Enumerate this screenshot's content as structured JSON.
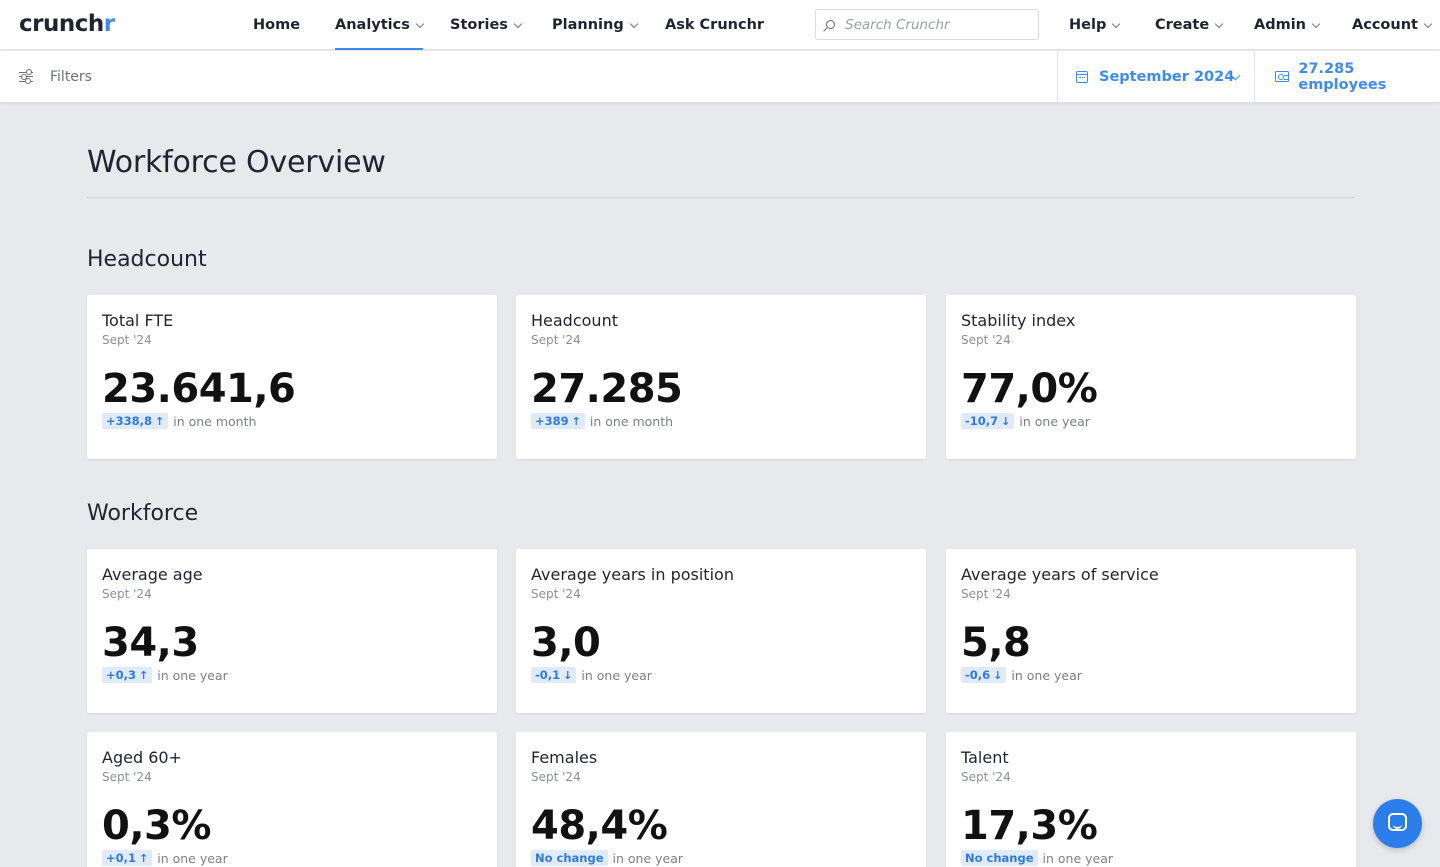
{
  "logo": {
    "prefix": "c",
    "main": "runch",
    "accent": "r"
  },
  "nav": {
    "items": [
      {
        "label": "Home",
        "dropdown": false,
        "active": false
      },
      {
        "label": "Analytics",
        "dropdown": true,
        "active": true
      },
      {
        "label": "Stories",
        "dropdown": true,
        "active": false
      },
      {
        "label": "Planning",
        "dropdown": true,
        "active": false
      },
      {
        "label": "Ask Crunchr",
        "dropdown": false,
        "active": false
      }
    ],
    "search_placeholder": "Search Crunchr",
    "right_items": [
      {
        "label": "Help"
      },
      {
        "label": "Create"
      },
      {
        "label": "Admin"
      },
      {
        "label": "Account"
      }
    ]
  },
  "filterbar": {
    "filters_label": "Filters",
    "date_label": "September 2024",
    "employees_label": "27.285 employees"
  },
  "page": {
    "title": "Workforce Overview",
    "sections": [
      {
        "title": "Headcount",
        "cards": [
          {
            "title": "Total FTE",
            "period": "Sept '24",
            "value": "23.641,6",
            "delta": "+338,8",
            "direction": "up",
            "compare": "in one month"
          },
          {
            "title": "Headcount",
            "period": "Sept '24",
            "value": "27.285",
            "delta": "+389",
            "direction": "up",
            "compare": "in one month"
          },
          {
            "title": "Stability index",
            "period": "Sept '24",
            "value": "77,0%",
            "delta": "-10,7",
            "direction": "down",
            "compare": "in one year"
          }
        ]
      },
      {
        "title": "Workforce",
        "cards": [
          {
            "title": "Average age",
            "period": "Sept '24",
            "value": "34,3",
            "delta": "+0,3",
            "direction": "up",
            "compare": "in one year"
          },
          {
            "title": "Average years in position",
            "period": "Sept '24",
            "value": "3,0",
            "delta": "-0,1",
            "direction": "down",
            "compare": "in one year"
          },
          {
            "title": "Average years of service",
            "period": "Sept '24",
            "value": "5,8",
            "delta": "-0,6",
            "direction": "down",
            "compare": "in one year"
          },
          {
            "title": "Aged 60+",
            "period": "Sept '24",
            "value": "0,3%",
            "delta": "+0,1",
            "direction": "up",
            "compare": "in one year"
          },
          {
            "title": "Females",
            "period": "Sept '24",
            "value": "48,4%",
            "delta": "No change",
            "direction": "none",
            "compare": "in one year"
          },
          {
            "title": "Talent",
            "period": "Sept '24",
            "value": "17,3%",
            "delta": "No change",
            "direction": "none",
            "compare": "in one year"
          }
        ]
      }
    ]
  },
  "icons": {
    "arrow_up": "↑",
    "arrow_down": "↓"
  },
  "colors": {
    "accent": "#3d8bf0",
    "badge_bg": "#dfeafb",
    "chat": "#2b7de9"
  }
}
